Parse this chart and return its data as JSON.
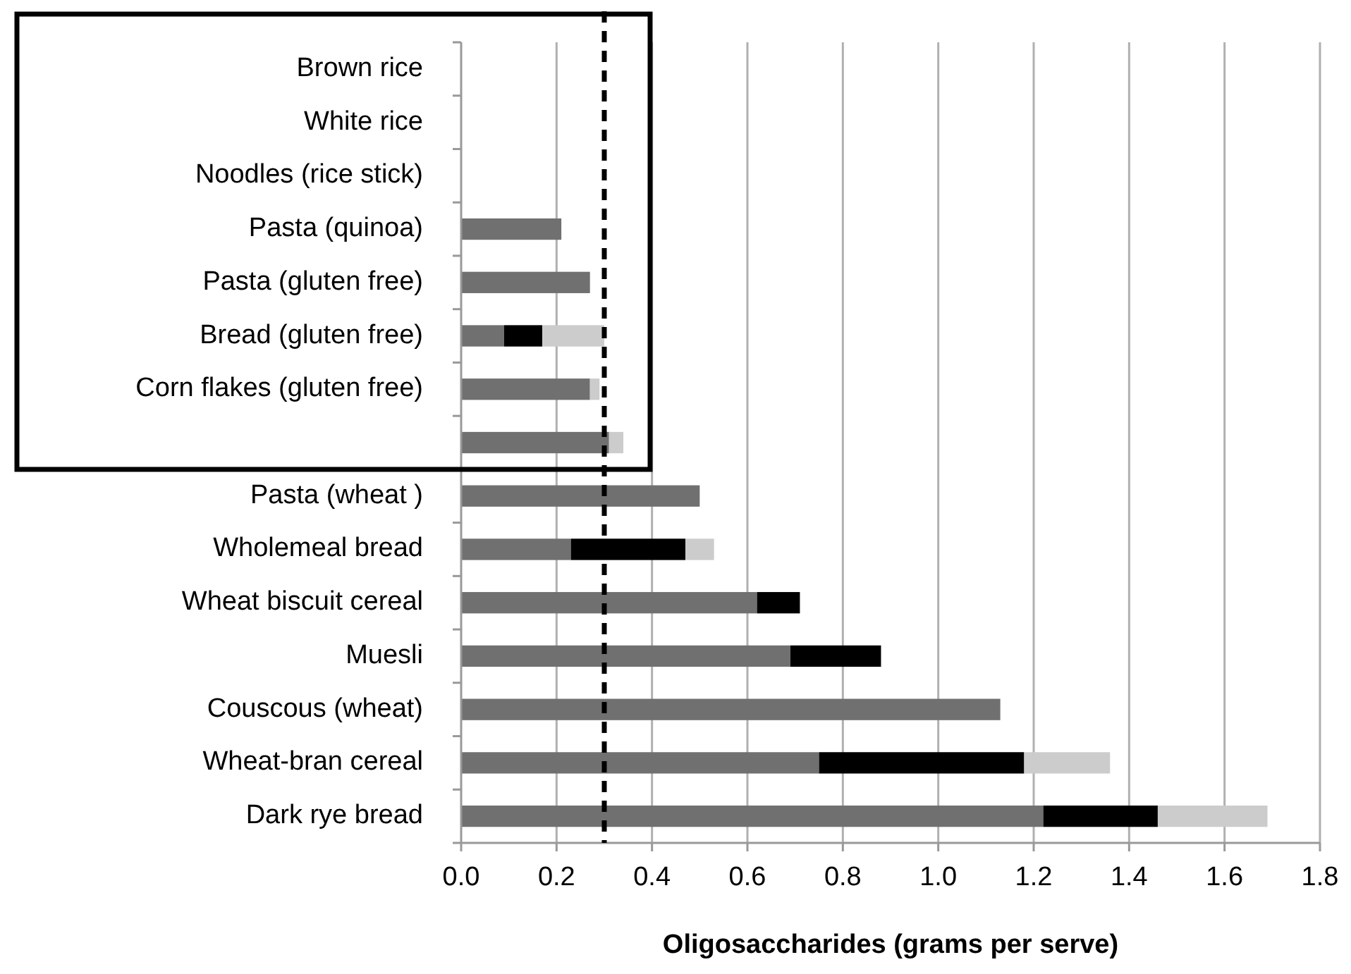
{
  "chart_data": {
    "type": "bar",
    "orientation": "horizontal",
    "stacked": true,
    "xlabel": "Oligosaccharides (grams per serve)",
    "categories": [
      "Brown rice",
      "White rice",
      "Noodles (rice stick)",
      "Pasta (quinoa)",
      "Pasta (gluten free)",
      "Bread (gluten free)",
      "Corn flakes (gluten free)",
      null,
      "Pasta (wheat )",
      "Wholemeal bread",
      "Wheat biscuit cereal",
      "Muesli ",
      "Couscous (wheat)",
      "Wheat-bran cereal",
      "Dark rye bread"
    ],
    "series": [
      {
        "color": "#707070",
        "values": [
          null,
          null,
          null,
          0.21,
          0.27,
          0.09,
          0.27,
          0.31,
          0.5,
          0.23,
          0.62,
          0.69,
          1.13,
          0.75,
          1.22
        ]
      },
      {
        "color": "#000000",
        "values": [
          null,
          null,
          null,
          null,
          null,
          0.08,
          null,
          null,
          null,
          0.24,
          0.09,
          0.19,
          null,
          0.43,
          0.24
        ]
      },
      {
        "color": "#cccccc",
        "values": [
          null,
          null,
          null,
          null,
          null,
          0.13,
          0.02,
          0.03,
          null,
          0.06,
          null,
          null,
          null,
          0.18,
          0.23
        ]
      }
    ],
    "xlim": [
      0,
      1.8
    ],
    "xticks": [
      {
        "value": 0,
        "label": "0.0"
      },
      0.2,
      0.4,
      0.6,
      0.8,
      {
        "value": 1,
        "label": "1.0"
      },
      1.2,
      1.4,
      1.6,
      1.8
    ],
    "grid": "x",
    "ref_lines": [
      {
        "axis": "x",
        "value": 0.3,
        "color": "#000000",
        "line_style": "dashed"
      }
    ]
  }
}
